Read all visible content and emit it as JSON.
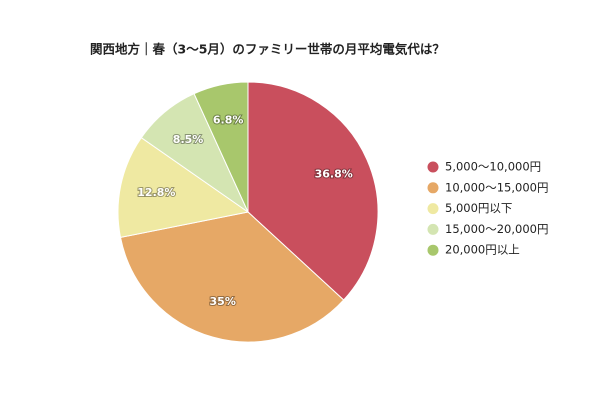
{
  "chart_data": {
    "type": "pie",
    "title": "関西地方｜春（3～5月）のファミリー世帯の月平均電気代は？",
    "categories": [
      "5,000～10,000円",
      "10,000～15,000円",
      "5,000円以下",
      "15,000～20,000円",
      "20,000円以上"
    ],
    "values": [
      36.8,
      35,
      12.8,
      8.5,
      6.8
    ],
    "value_labels": [
      "36.8%",
      "35%",
      "12.8%",
      "8.5%",
      "6.8%"
    ],
    "colors": [
      "#c94f5d",
      "#e6a866",
      "#efe9a2",
      "#d4e5b2",
      "#a8c76c"
    ],
    "legend": "right"
  }
}
